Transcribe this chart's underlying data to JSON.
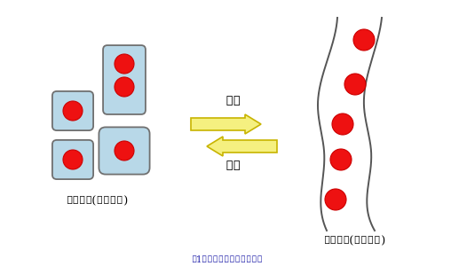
{
  "bg_color": "#ffffff",
  "cell_fill": "#b8d8e8",
  "cell_edge": "#707070",
  "nucleus_fill": "#ee1111",
  "nucleus_edge": "#cc0000",
  "arrow_fill": "#f5f080",
  "arrow_edge": "#c8b400",
  "tube_line_color": "#555555",
  "label_left": "筋芽細胞(単核細胞)",
  "label_right": "筋管細胞(多核細胞)",
  "arrow_right_label": "分化",
  "arrow_left_label": "分裂",
  "caption": "図1　筋肉細胞の分化と分裂",
  "caption_color": "#2222aa"
}
